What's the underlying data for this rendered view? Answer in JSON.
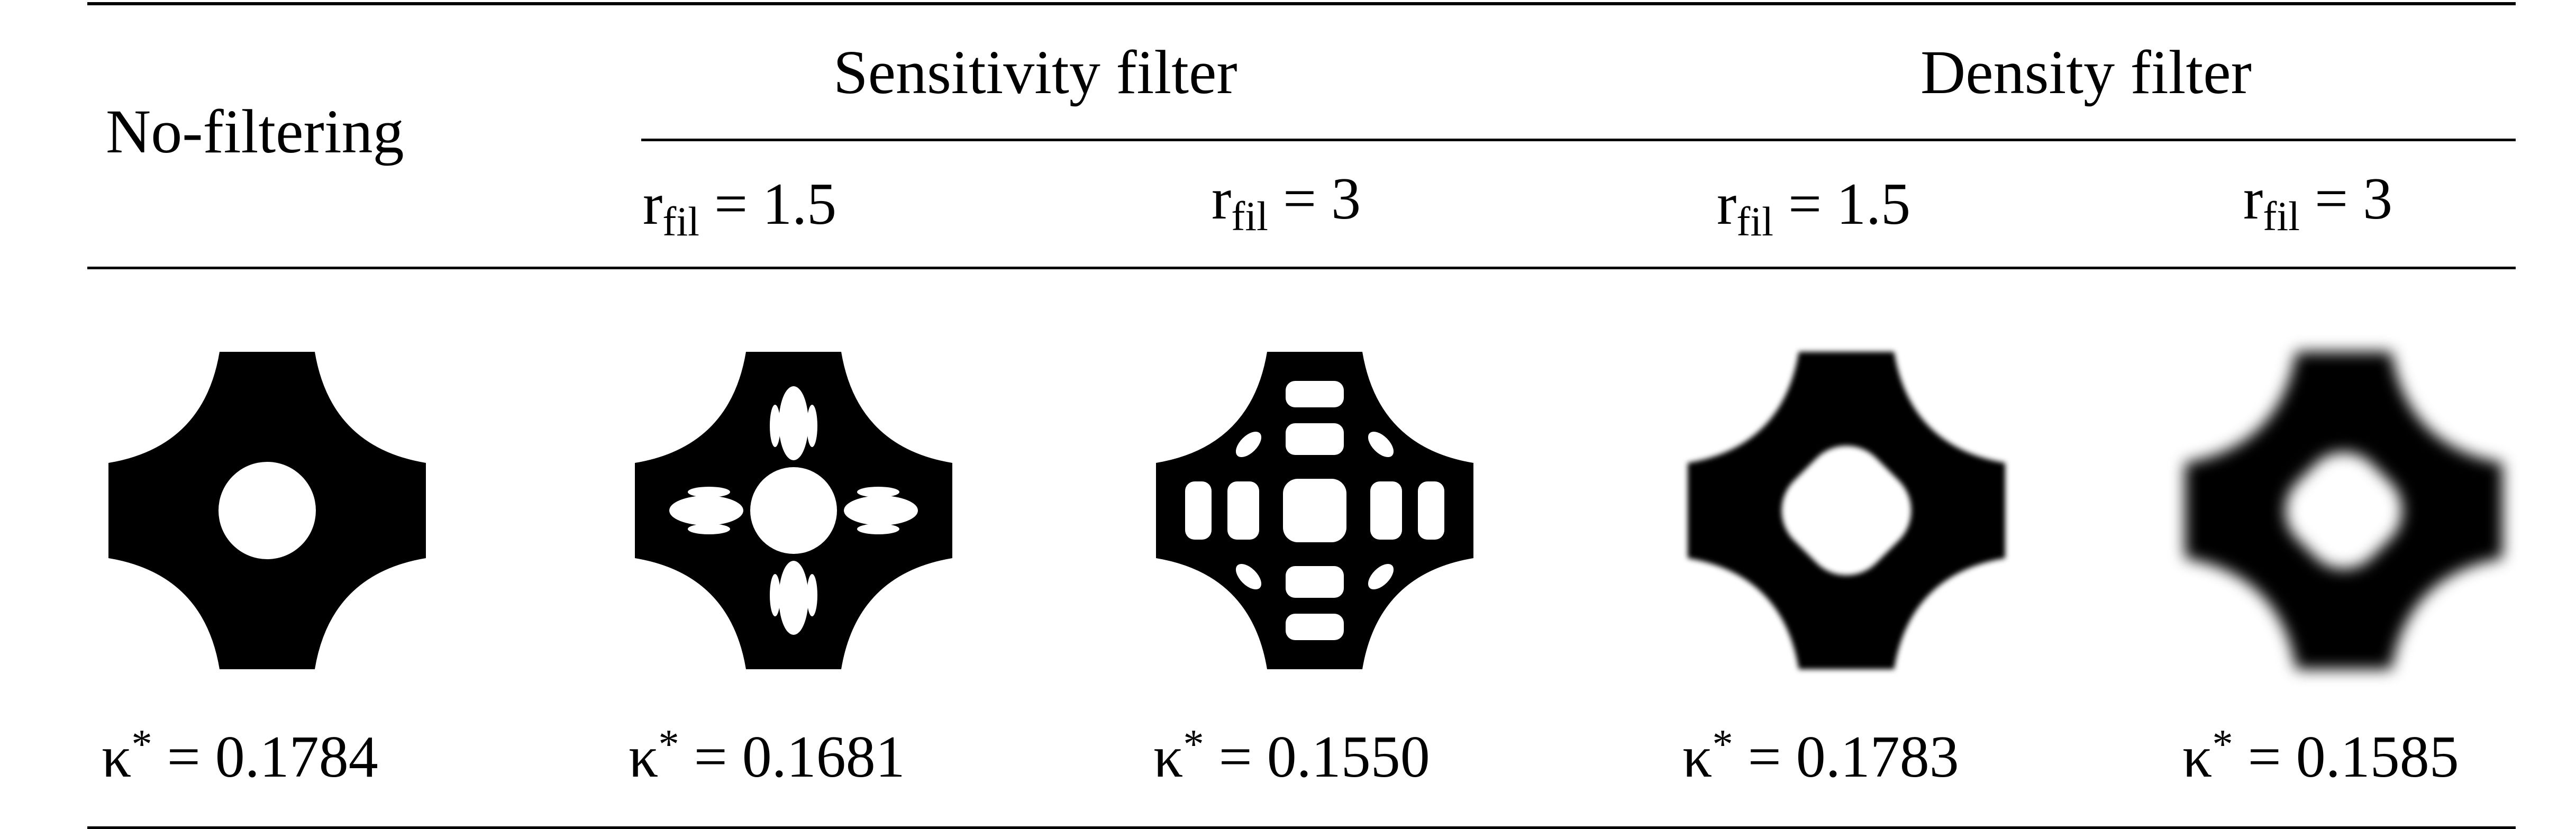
{
  "table": {
    "header": {
      "no_filtering": "No-filtering",
      "sensitivity_filter": "Sensitivity filter",
      "density_filter": "Density filter",
      "sub_labels": [
        {
          "symbol": "r",
          "subscript": "fil",
          "relation": "= 1.5"
        },
        {
          "symbol": "r",
          "subscript": "fil",
          "relation": "= 3"
        },
        {
          "symbol": "r",
          "subscript": "fil",
          "relation": "= 1.5"
        },
        {
          "symbol": "r",
          "subscript": "fil",
          "relation": "= 3"
        }
      ]
    },
    "results": [
      {
        "symbol": "κ",
        "superscript": "*",
        "relation": "= 0.1784"
      },
      {
        "symbol": "κ",
        "superscript": "*",
        "relation": "= 0.1681"
      },
      {
        "symbol": "κ",
        "superscript": "*",
        "relation": "= 0.1550"
      },
      {
        "symbol": "κ",
        "superscript": "*",
        "relation": "= 0.1783"
      },
      {
        "symbol": "κ",
        "superscript": "*",
        "relation": "= 0.1585"
      }
    ]
  }
}
